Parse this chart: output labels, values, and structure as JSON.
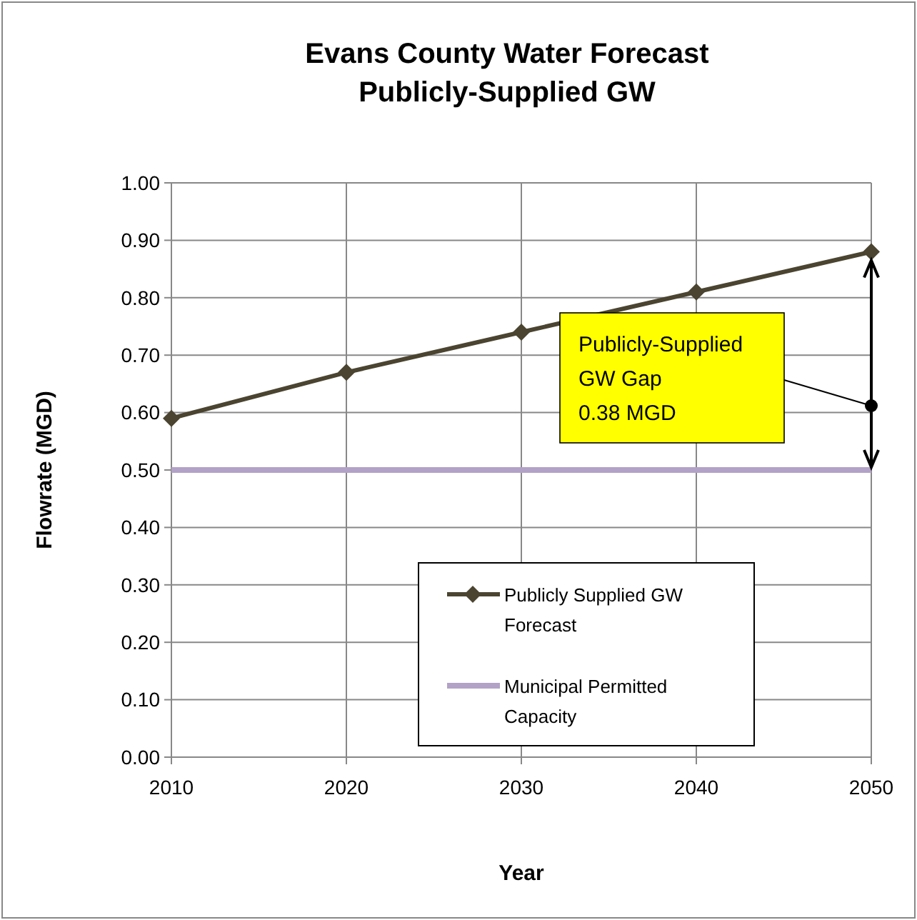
{
  "chart_data": {
    "type": "line",
    "title": "Evans County Water Forecast\nPublicly-Supplied  GW",
    "xlabel": "Year",
    "ylabel": "Flowrate (MGD)",
    "x": [
      2010,
      2020,
      2030,
      2040,
      2050
    ],
    "series": [
      {
        "name": "Publicly Supplied GW Forecast",
        "color": "#4a4430",
        "values": [
          0.59,
          0.67,
          0.74,
          0.81,
          0.88
        ],
        "marker": "diamond"
      },
      {
        "name": "Municipal Permitted Capacity",
        "color": "#b3a2c7",
        "values": [
          0.5,
          0.5,
          0.5,
          0.5,
          0.5
        ],
        "marker": "none"
      }
    ],
    "annotations": [
      "Publicly-Supplied\nGW Gap\n0.38 MGD"
    ],
    "xlim": [
      2010,
      2050
    ],
    "xticks": [
      2010,
      2020,
      2030,
      2040,
      2050
    ],
    "ylim": [
      0,
      1
    ],
    "yticks": [
      {
        "value": 0,
        "label": "0.00"
      },
      {
        "value": 0.1,
        "label": "0.10"
      },
      {
        "value": 0.2,
        "label": "0.20"
      },
      {
        "value": 0.3,
        "label": "0.30"
      },
      {
        "value": 0.4,
        "label": "0.40"
      },
      {
        "value": 0.5,
        "label": "0.50"
      },
      {
        "value": 0.6,
        "label": "0.60"
      },
      {
        "value": 0.7,
        "label": "0.70"
      },
      {
        "value": 0.8,
        "label": "0.80"
      },
      {
        "value": 0.9,
        "label": "0.90"
      },
      {
        "value": 1,
        "label": "1.00"
      }
    ],
    "grid": true,
    "legend": "bottom",
    "line_style": "solid"
  }
}
